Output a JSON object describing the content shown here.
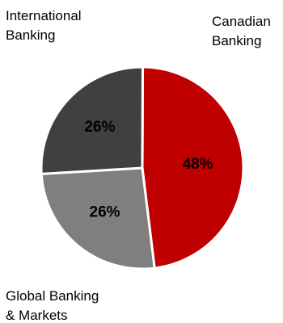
{
  "chart_data": {
    "type": "pie",
    "title": "",
    "slices": [
      {
        "name": "Canadian Banking",
        "value": 48,
        "label": "48%",
        "color": "#c00000"
      },
      {
        "name": "Global Banking & Markets",
        "value": 26,
        "label": "26%",
        "color": "#7f7f7f"
      },
      {
        "name": "International Banking",
        "value": 26,
        "label": "26%",
        "color": "#404040"
      }
    ],
    "legend": "none",
    "category_labels": {
      "international": "International\nBanking",
      "canadian": "Canadian\nBanking",
      "global": "Global Banking\n& Markets"
    }
  }
}
